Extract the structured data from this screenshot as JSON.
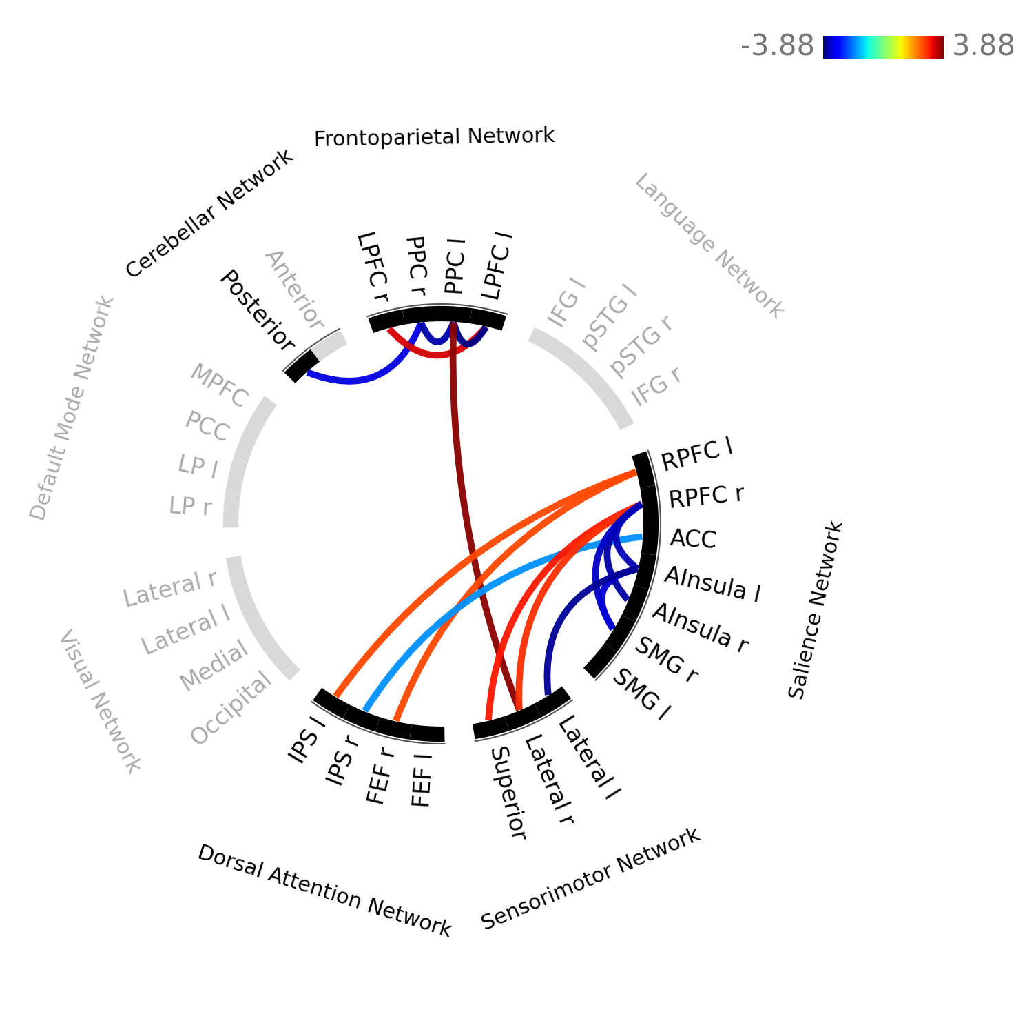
{
  "chart_data": {
    "type": "chord",
    "networks": [
      {
        "name": "Cerebellar Network",
        "nodes": [
          {
            "label": "Posterior",
            "active": true
          },
          {
            "label": "Anterior",
            "active": false
          }
        ]
      },
      {
        "name": "Frontoparietal Network",
        "nodes": [
          {
            "label": "LPFC r",
            "active": true
          },
          {
            "label": "PPC r",
            "active": true
          },
          {
            "label": "PPC l",
            "active": true
          },
          {
            "label": "LPFC l",
            "active": true
          }
        ]
      },
      {
        "name": "Language Network",
        "nodes": [
          {
            "label": "IFG l",
            "active": false
          },
          {
            "label": "pSTG l",
            "active": false
          },
          {
            "label": "pSTG r",
            "active": false
          },
          {
            "label": "IFG r",
            "active": false
          }
        ]
      },
      {
        "name": "Salience Network",
        "nodes": [
          {
            "label": "RPFC l",
            "active": true
          },
          {
            "label": "RPFC r",
            "active": true
          },
          {
            "label": "ACC",
            "active": true
          },
          {
            "label": "AInsula l",
            "active": true
          },
          {
            "label": "AInsula r",
            "active": true
          },
          {
            "label": "SMG r",
            "active": true
          },
          {
            "label": "SMG l",
            "active": true
          }
        ]
      },
      {
        "name": "Sensorimotor Network",
        "nodes": [
          {
            "label": "Lateral l",
            "active": true
          },
          {
            "label": "Lateral r",
            "active": true
          },
          {
            "label": "Superior",
            "active": true
          }
        ]
      },
      {
        "name": "Dorsal Attention Network",
        "nodes": [
          {
            "label": "FEF l",
            "active": true
          },
          {
            "label": "FEF r",
            "active": true
          },
          {
            "label": "IPS r",
            "active": true
          },
          {
            "label": "IPS l",
            "active": true
          }
        ]
      },
      {
        "name": "Visual Network",
        "nodes": [
          {
            "label": "Occipital",
            "active": false
          },
          {
            "label": "Medial",
            "active": false
          },
          {
            "label": "Lateral l",
            "active": false
          },
          {
            "label": "Lateral r",
            "active": false
          }
        ]
      },
      {
        "name": "Default Mode Network",
        "nodes": [
          {
            "label": "LP r",
            "active": false
          },
          {
            "label": "LP l",
            "active": false
          },
          {
            "label": "PCC",
            "active": false
          },
          {
            "label": "MPFC",
            "active": false
          }
        ]
      }
    ],
    "links": [
      {
        "source": [
          "Cerebellar Network",
          "Posterior"
        ],
        "target": [
          "Frontoparietal Network",
          "PPC r"
        ],
        "value": -3.2
      },
      {
        "source": [
          "Frontoparietal Network",
          "LPFC r"
        ],
        "target": [
          "Frontoparietal Network",
          "LPFC l"
        ],
        "value": 3.3
      },
      {
        "source": [
          "Frontoparietal Network",
          "PPC r"
        ],
        "target": [
          "Frontoparietal Network",
          "PPC l"
        ],
        "value": -3.6
      },
      {
        "source": [
          "Frontoparietal Network",
          "PPC l"
        ],
        "target": [
          "Frontoparietal Network",
          "LPFC l"
        ],
        "value": -3.8
      },
      {
        "source": [
          "Frontoparietal Network",
          "PPC l"
        ],
        "target": [
          "Sensorimotor Network",
          "Lateral r"
        ],
        "value": 3.8
      },
      {
        "source": [
          "Salience Network",
          "RPFC l"
        ],
        "target": [
          "Dorsal Attention Network",
          "IPS l"
        ],
        "value": 2.6
      },
      {
        "source": [
          "Salience Network",
          "RPFC l"
        ],
        "target": [
          "Dorsal Attention Network",
          "FEF r"
        ],
        "value": 2.6
      },
      {
        "source": [
          "Salience Network",
          "ACC"
        ],
        "target": [
          "Dorsal Attention Network",
          "IPS r"
        ],
        "value": -1.8
      },
      {
        "source": [
          "Salience Network",
          "RPFC r"
        ],
        "target": [
          "Sensorimotor Network",
          "Superior"
        ],
        "value": 3.0
      },
      {
        "source": [
          "Salience Network",
          "RPFC r"
        ],
        "target": [
          "Sensorimotor Network",
          "Lateral r"
        ],
        "value": 2.8
      },
      {
        "source": [
          "Salience Network",
          "RPFC r"
        ],
        "target": [
          "Salience Network",
          "AInsula r"
        ],
        "value": -3.6
      },
      {
        "source": [
          "Salience Network",
          "RPFC r"
        ],
        "target": [
          "Salience Network",
          "SMG r"
        ],
        "value": -3.4
      },
      {
        "source": [
          "Salience Network",
          "RPFC r"
        ],
        "target": [
          "Salience Network",
          "AInsula l"
        ],
        "value": -3.5
      },
      {
        "source": [
          "Salience Network",
          "AInsula l"
        ],
        "target": [
          "Salience Network",
          "SMG r"
        ],
        "value": -3.3
      },
      {
        "source": [
          "Salience Network",
          "AInsula l"
        ],
        "target": [
          "Sensorimotor Network",
          "Lateral l"
        ],
        "value": -3.7
      }
    ],
    "colorbar": {
      "range": [
        -3.88,
        3.88
      ],
      "ticks": [
        -3.88,
        3.88
      ]
    }
  }
}
